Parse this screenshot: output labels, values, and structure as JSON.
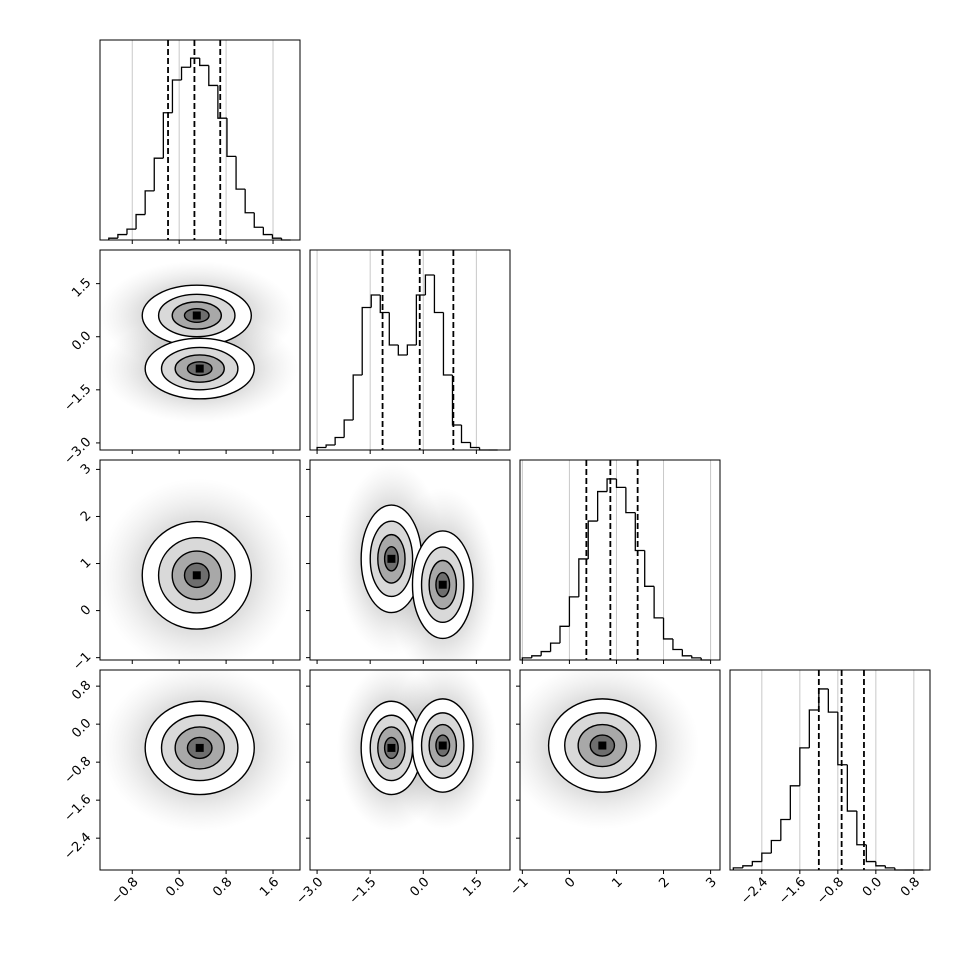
{
  "chart_data": {
    "type": "corner",
    "params": [
      {
        "lim": [
          -1.35,
          2.06
        ],
        "ticks": [
          {
            "value": -0.8,
            "label": "−0.8"
          },
          {
            "value": 0,
            "label": "0.0"
          },
          {
            "value": 0.8,
            "label": "0.8"
          },
          {
            "value": 1.6,
            "label": "1.6"
          }
        ],
        "bins": [
          -1.2,
          -1.045,
          -0.89,
          -0.735,
          -0.58,
          -0.425,
          -0.27,
          -0.115,
          0.04,
          0.195,
          0.35,
          0.505,
          0.66,
          0.815,
          0.97,
          1.125,
          1.28,
          1.435,
          1.59,
          1.745,
          1.9
        ],
        "counts": [
          1,
          3,
          6,
          14,
          27,
          45,
          70,
          88,
          95,
          100,
          96,
          85,
          67,
          46,
          28,
          15,
          7,
          3,
          1,
          0
        ],
        "ylim": [
          0,
          110
        ],
        "quantiles": [
          -0.19,
          0.26,
          0.7
        ]
      },
      {
        "lim": [
          -3.2,
          2.45
        ],
        "ticks": [
          {
            "value": -3,
            "label": "−3.0"
          },
          {
            "value": -1.5,
            "label": "−1.5"
          },
          {
            "value": 0,
            "label": "0.0"
          },
          {
            "value": 1.5,
            "label": "1.5"
          }
        ],
        "bins": [
          -3.0,
          -2.745,
          -2.49,
          -2.235,
          -1.98,
          -1.725,
          -1.47,
          -1.215,
          -0.96,
          -0.705,
          -0.45,
          -0.195,
          0.06,
          0.315,
          0.57,
          0.825,
          1.08,
          1.335,
          1.59,
          1.845,
          2.1
        ],
        "counts": [
          1,
          2,
          5,
          12,
          30,
          57,
          62,
          55,
          42,
          38,
          42,
          62,
          70,
          55,
          30,
          10,
          3,
          1,
          0,
          0
        ],
        "ylim": [
          0,
          80
        ],
        "quantiles": [
          -1.15,
          -0.1,
          0.85
        ]
      },
      {
        "lim": [
          -1.05,
          3.2
        ],
        "ticks": [
          {
            "value": -1,
            "label": "−1"
          },
          0,
          1,
          2,
          3
        ],
        "bins": [
          -1.0,
          -0.8,
          -0.6,
          -0.4,
          -0.2,
          0.0,
          0.2,
          0.4,
          0.6,
          0.8,
          1.0,
          1.2,
          1.4,
          1.6,
          1.8,
          2.0,
          2.2,
          2.4,
          2.6,
          2.8,
          3.0
        ],
        "counts": [
          1,
          2,
          4,
          8,
          16,
          30,
          48,
          66,
          80,
          86,
          82,
          70,
          52,
          35,
          20,
          10,
          5,
          2,
          1,
          0
        ],
        "ylim": [
          0,
          95
        ],
        "quantiles": [
          0.36,
          0.87,
          1.45
        ]
      },
      {
        "lim": [
          -3.07,
          1.14
        ],
        "ticks": [
          {
            "value": -2.4,
            "label": "−2.4"
          },
          {
            "value": -1.6,
            "label": "−1.6"
          },
          {
            "value": -0.8,
            "label": "−0.8"
          },
          {
            "value": 0,
            "label": "0.0"
          },
          {
            "value": 0.8,
            "label": "0.8"
          }
        ],
        "bins": [
          -3.0,
          -2.8,
          -2.6,
          -2.4,
          -2.2,
          -2.0,
          -1.8,
          -1.6,
          -1.4,
          -1.2,
          -1.0,
          -0.8,
          -0.6,
          -0.4,
          -0.2,
          0.0,
          0.2,
          0.4,
          0.6,
          0.8,
          1.0
        ],
        "counts": [
          1,
          2,
          4,
          8,
          14,
          24,
          40,
          58,
          76,
          86,
          75,
          50,
          28,
          12,
          4,
          2,
          1,
          0,
          0,
          0
        ],
        "ylim": [
          0,
          95
        ],
        "quantiles": [
          -1.2,
          -0.72,
          -0.25
        ]
      }
    ],
    "pairs": [
      {
        "params": [
          0,
          1
        ],
        "peaks_x": [
          0.3,
          0.35
        ],
        "peaks_y": [
          0.6,
          -0.9
        ]
      },
      {
        "params": [
          0,
          2
        ],
        "peaks_x": [
          0.3
        ],
        "peaks_y": [
          0.75
        ]
      },
      {
        "params": [
          1,
          2
        ],
        "peaks_x": [
          -0.9,
          0.55
        ],
        "peaks_y": [
          1.1,
          0.55
        ]
      },
      {
        "params": [
          0,
          3
        ],
        "peaks_x": [
          0.35
        ],
        "peaks_y": [
          -0.5
        ]
      },
      {
        "params": [
          1,
          3
        ],
        "peaks_x": [
          -0.9,
          0.55
        ],
        "peaks_y": [
          -0.5,
          -0.45
        ]
      },
      {
        "params": [
          2,
          3
        ],
        "peaks_x": [
          0.7
        ],
        "peaks_y": [
          -0.45
        ]
      }
    ]
  }
}
